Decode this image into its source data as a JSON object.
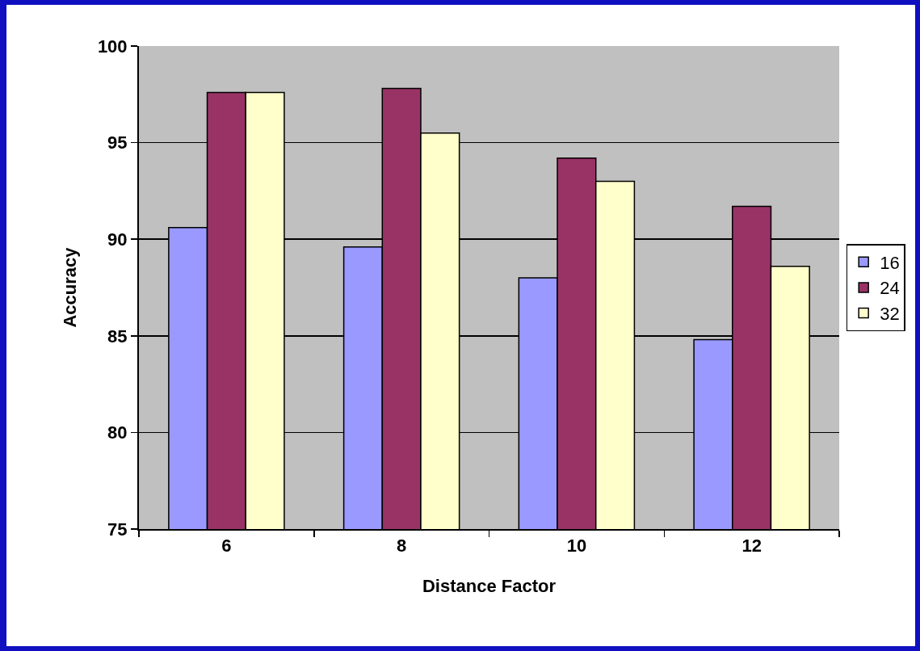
{
  "chart_data": {
    "type": "bar",
    "xlabel": "Distance Factor",
    "ylabel": "Accuracy",
    "categories": [
      "6",
      "8",
      "10",
      "12"
    ],
    "series": [
      {
        "name": "16",
        "color": "#9999ff",
        "values": [
          90.6,
          89.6,
          88.0,
          84.8
        ]
      },
      {
        "name": "24",
        "color": "#993366",
        "values": [
          97.6,
          97.8,
          94.2,
          91.7
        ]
      },
      {
        "name": "32",
        "color": "#ffffcc",
        "values": [
          97.6,
          95.5,
          93.0,
          88.6
        ]
      }
    ],
    "ylim": [
      75,
      100
    ],
    "yticks": [
      75,
      80,
      85,
      90,
      95,
      100
    ],
    "grid": "y",
    "legend": "right"
  }
}
